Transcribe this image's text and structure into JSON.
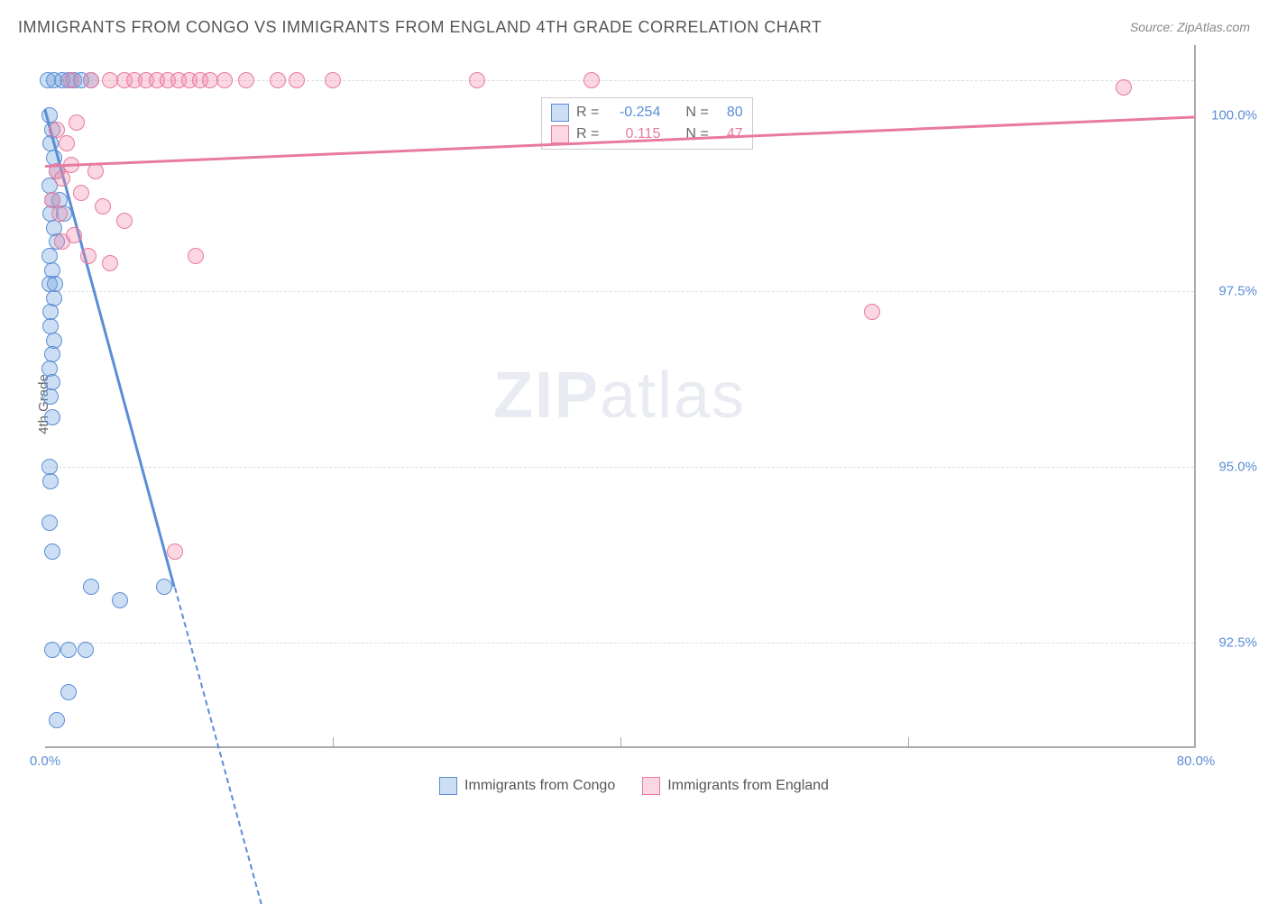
{
  "title": "IMMIGRANTS FROM CONGO VS IMMIGRANTS FROM ENGLAND 4TH GRADE CORRELATION CHART",
  "source": "Source: ZipAtlas.com",
  "ylabel": "4th Grade",
  "watermark_a": "ZIP",
  "watermark_b": "atlas",
  "chart": {
    "type": "scatter",
    "xlim": [
      0,
      80
    ],
    "ylim": [
      91,
      101
    ],
    "xticks": [
      {
        "v": 0,
        "label": "0.0%",
        "color": "#5b8dd6"
      },
      {
        "v": 80,
        "label": "80.0%",
        "color": "#5b8dd6"
      }
    ],
    "yticks": [
      {
        "v": 92.5,
        "label": "92.5%"
      },
      {
        "v": 95.0,
        "label": "95.0%"
      },
      {
        "v": 97.5,
        "label": "97.5%"
      },
      {
        "v": 100.0,
        "label": "100.0%"
      }
    ],
    "xgrid": [
      20,
      40,
      60
    ],
    "ygrid": [
      92.5,
      95.0,
      97.5,
      100.5
    ],
    "ytick_color": "#5b8dd6",
    "grid_color": "#dddddd",
    "marker_radius": 9,
    "marker_stroke_width": 1.5,
    "series": [
      {
        "id": "congo",
        "label": "Immigrants from Congo",
        "fill": "rgba(110,160,220,0.35)",
        "stroke": "#5b8dd6",
        "r_value": "-0.254",
        "n_value": "80",
        "trend": {
          "x1": 0,
          "y1": 100.1,
          "x2": 9,
          "y2": 93.3,
          "extend_x": 15,
          "extend_y": 88.8
        },
        "points": [
          [
            0.2,
            100.5
          ],
          [
            0.6,
            100.5
          ],
          [
            1.2,
            100.5
          ],
          [
            1.6,
            100.5
          ],
          [
            2.0,
            100.5
          ],
          [
            2.5,
            100.5
          ],
          [
            3.2,
            100.5
          ],
          [
            0.3,
            100.0
          ],
          [
            0.5,
            99.8
          ],
          [
            0.4,
            99.6
          ],
          [
            0.6,
            99.4
          ],
          [
            0.8,
            99.2
          ],
          [
            0.3,
            99.0
          ],
          [
            0.5,
            98.8
          ],
          [
            0.4,
            98.6
          ],
          [
            0.6,
            98.4
          ],
          [
            0.8,
            98.2
          ],
          [
            1.0,
            98.8
          ],
          [
            1.3,
            98.6
          ],
          [
            0.3,
            98.0
          ],
          [
            0.5,
            97.8
          ],
          [
            0.3,
            97.6
          ],
          [
            0.6,
            97.4
          ],
          [
            0.4,
            97.2
          ],
          [
            0.7,
            97.6
          ],
          [
            0.4,
            97.0
          ],
          [
            0.6,
            96.8
          ],
          [
            0.5,
            96.6
          ],
          [
            0.3,
            96.4
          ],
          [
            0.5,
            96.2
          ],
          [
            0.4,
            96.0
          ],
          [
            0.5,
            95.7
          ],
          [
            0.3,
            95.0
          ],
          [
            0.4,
            94.8
          ],
          [
            0.3,
            94.2
          ],
          [
            0.5,
            93.8
          ],
          [
            3.2,
            93.3
          ],
          [
            5.2,
            93.1
          ],
          [
            8.3,
            93.3
          ],
          [
            0.5,
            92.4
          ],
          [
            1.6,
            92.4
          ],
          [
            2.8,
            92.4
          ],
          [
            1.6,
            91.8
          ],
          [
            0.8,
            91.4
          ]
        ]
      },
      {
        "id": "england",
        "label": "Immigrants from England",
        "fill": "rgba(240,140,170,0.35)",
        "stroke": "#e87aa0",
        "r_value": "0.115",
        "n_value": "47",
        "trend": {
          "x1": 0,
          "y1": 99.3,
          "x2": 80,
          "y2": 100.0
        },
        "points": [
          [
            1.8,
            100.5
          ],
          [
            3.2,
            100.5
          ],
          [
            4.5,
            100.5
          ],
          [
            5.5,
            100.5
          ],
          [
            6.2,
            100.5
          ],
          [
            7.0,
            100.5
          ],
          [
            7.8,
            100.5
          ],
          [
            8.5,
            100.5
          ],
          [
            9.3,
            100.5
          ],
          [
            10.0,
            100.5
          ],
          [
            10.8,
            100.5
          ],
          [
            11.5,
            100.5
          ],
          [
            12.5,
            100.5
          ],
          [
            14.0,
            100.5
          ],
          [
            16.2,
            100.5
          ],
          [
            17.5,
            100.5
          ],
          [
            20.0,
            100.5
          ],
          [
            30.0,
            100.5
          ],
          [
            38.0,
            100.5
          ],
          [
            75.0,
            100.4
          ],
          [
            0.8,
            99.8
          ],
          [
            1.5,
            99.6
          ],
          [
            2.2,
            99.9
          ],
          [
            0.8,
            99.2
          ],
          [
            1.2,
            99.1
          ],
          [
            1.8,
            99.3
          ],
          [
            3.5,
            99.2
          ],
          [
            0.5,
            98.8
          ],
          [
            1.0,
            98.6
          ],
          [
            2.5,
            98.9
          ],
          [
            4.0,
            98.7
          ],
          [
            1.2,
            98.2
          ],
          [
            2.0,
            98.3
          ],
          [
            5.5,
            98.5
          ],
          [
            3.0,
            98.0
          ],
          [
            4.5,
            97.9
          ],
          [
            10.5,
            98.0
          ],
          [
            57.5,
            97.2
          ],
          [
            9.0,
            93.8
          ]
        ]
      }
    ],
    "stats_labels": {
      "r": "R =",
      "n": "N ="
    }
  },
  "legend": {
    "congo": "Immigrants from Congo",
    "england": "Immigrants from England"
  }
}
